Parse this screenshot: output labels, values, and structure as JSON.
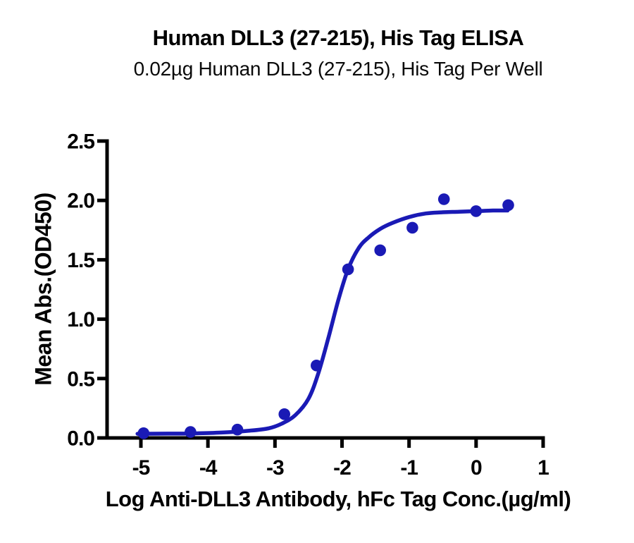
{
  "page": {
    "background": "#ffffff"
  },
  "chart_data": {
    "type": "scatter",
    "title": "Human DLL3 (27-215), His Tag ELISA",
    "subtitle": "0.02µg Human DLL3 (27-215), His Tag Per Well",
    "xlabel": "Log Anti-DLL3 Antibody, hFc Tag Conc.(µg/ml)",
    "ylabel": "Mean Abs.(OD450)",
    "xlim": [
      -5,
      1
    ],
    "ylim": [
      0,
      2.5
    ],
    "x_ticks": [
      -5,
      -4,
      -3,
      -2,
      -1,
      0,
      1
    ],
    "x_tick_labels": [
      "-5",
      "-4",
      "-3",
      "-2",
      "-1",
      "0",
      "1"
    ],
    "y_ticks": [
      0.0,
      0.5,
      1.0,
      1.5,
      2.0,
      2.5
    ],
    "y_tick_labels": [
      "0.0",
      "0.5",
      "1.0",
      "1.5",
      "2.0",
      "2.5"
    ],
    "grid": false,
    "legend": false,
    "axis_color": "#000000",
    "series": [
      {
        "name": "Anti-DLL3 Antibody, hFc Tag",
        "color": "#1a1ab5",
        "marker": "circle",
        "points": [
          {
            "log_conc": -4.96,
            "od450": 0.04
          },
          {
            "log_conc": -4.26,
            "od450": 0.05
          },
          {
            "log_conc": -3.56,
            "od450": 0.07
          },
          {
            "log_conc": -2.86,
            "od450": 0.2
          },
          {
            "log_conc": -2.38,
            "od450": 0.61
          },
          {
            "log_conc": -1.91,
            "od450": 1.42
          },
          {
            "log_conc": -1.43,
            "od450": 1.58
          },
          {
            "log_conc": -0.95,
            "od450": 1.77
          },
          {
            "log_conc": -0.48,
            "od450": 2.01
          },
          {
            "log_conc": 0.0,
            "od450": 1.91
          },
          {
            "log_conc": 0.48,
            "od450": 1.96
          }
        ],
        "fit_curve": [
          [
            -5.05,
            0.035
          ],
          [
            -4.6,
            0.036
          ],
          [
            -4.2,
            0.038
          ],
          [
            -3.8,
            0.045
          ],
          [
            -3.4,
            0.06
          ],
          [
            -3.1,
            0.08
          ],
          [
            -2.9,
            0.12
          ],
          [
            -2.7,
            0.19
          ],
          [
            -2.5,
            0.33
          ],
          [
            -2.35,
            0.55
          ],
          [
            -2.2,
            0.85
          ],
          [
            -2.05,
            1.17
          ],
          [
            -1.91,
            1.42
          ],
          [
            -1.75,
            1.6
          ],
          [
            -1.6,
            1.69
          ],
          [
            -1.43,
            1.76
          ],
          [
            -1.25,
            1.81
          ],
          [
            -1.0,
            1.86
          ],
          [
            -0.75,
            1.89
          ],
          [
            -0.5,
            1.9
          ],
          [
            -0.25,
            1.905
          ],
          [
            0.0,
            1.91
          ],
          [
            0.25,
            1.915
          ],
          [
            0.47,
            1.915
          ]
        ]
      }
    ]
  }
}
